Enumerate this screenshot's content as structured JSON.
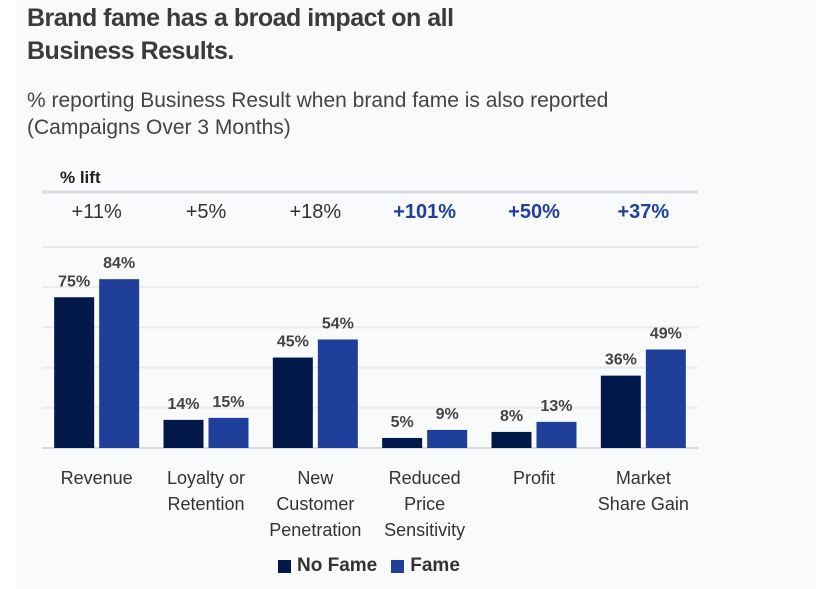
{
  "title_line1": "Brand fame has a broad impact on all",
  "title_line2": "Business Results.",
  "subtitle_line1": "% reporting Business Result when brand fame is also reported",
  "subtitle_line2": "(Campaigns Over 3 Months)",
  "chart_data": {
    "type": "bar",
    "lift_header": "% lift",
    "categories": [
      [
        "Revenue"
      ],
      [
        "Loyalty or",
        "Retention"
      ],
      [
        "New",
        "Customer",
        "Penetration"
      ],
      [
        "Reduced",
        "Price",
        "Sensitivity"
      ],
      [
        "Profit"
      ],
      [
        "Market",
        "Share Gain"
      ]
    ],
    "lift": [
      "+11%",
      "+5%",
      "+18%",
      "+101%",
      "+50%",
      "+37%"
    ],
    "lift_highlight": [
      false,
      false,
      false,
      true,
      true,
      true
    ],
    "series": [
      {
        "name": "No Fame",
        "values": [
          75,
          14,
          45,
          5,
          8,
          36
        ],
        "color": "#02174a"
      },
      {
        "name": "Fame",
        "values": [
          84,
          15,
          54,
          9,
          13,
          49
        ],
        "color": "#1f3f9a"
      }
    ],
    "ylim": [
      0,
      100
    ],
    "grid": true,
    "legend": "bottom"
  }
}
